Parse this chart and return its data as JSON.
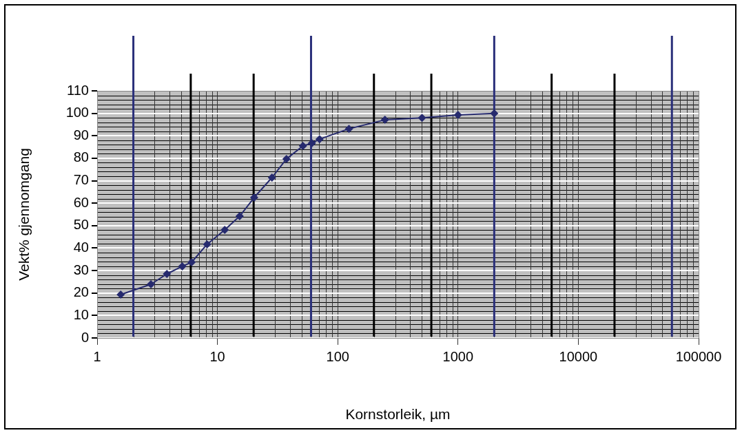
{
  "chart_data": {
    "type": "line",
    "xlabel": "Kornstorleik, µm",
    "ylabel": "Vekt% gjennomgang",
    "x": [
      1.57,
      2.8,
      3.8,
      5.1,
      6.1,
      8.2,
      11.5,
      15.3,
      20.2,
      28.4,
      37.5,
      51.4,
      61,
      70.6,
      124,
      247,
      502,
      1000,
      2000
    ],
    "values": [
      19.3,
      23.9,
      28.5,
      31.9,
      33.7,
      41.7,
      48.1,
      54.2,
      62.5,
      71.4,
      79.7,
      85.5,
      86.7,
      88.5,
      93.1,
      97.1,
      98.0,
      99.3,
      100
    ],
    "color": "#262a6e",
    "marker": "diamond",
    "log": "x",
    "grid": true,
    "xlim": [
      1,
      100000
    ],
    "xticks": [
      1,
      10,
      100,
      1000,
      10000,
      100000
    ],
    "ylim": [
      0,
      110
    ],
    "yticks": [
      0,
      10,
      20,
      30,
      40,
      50,
      60,
      70,
      80,
      90,
      100,
      110
    ],
    "ref_lines": [
      {
        "axis": "x",
        "value": 2,
        "color": "#2a2f7a"
      },
      {
        "axis": "x",
        "value": 6,
        "color": "#000000"
      },
      {
        "axis": "x",
        "value": 20,
        "color": "#000000"
      },
      {
        "axis": "x",
        "value": 60,
        "color": "#2a2f7a"
      },
      {
        "axis": "x",
        "value": 200,
        "color": "#000000"
      },
      {
        "axis": "x",
        "value": 600,
        "color": "#000000"
      },
      {
        "axis": "x",
        "value": 2000,
        "color": "#2a2f7a"
      },
      {
        "axis": "x",
        "value": 6000,
        "color": "#000000"
      },
      {
        "axis": "x",
        "value": 20000,
        "color": "#000000"
      },
      {
        "axis": "x",
        "value": 60000,
        "color": "#2a2f7a"
      }
    ]
  }
}
